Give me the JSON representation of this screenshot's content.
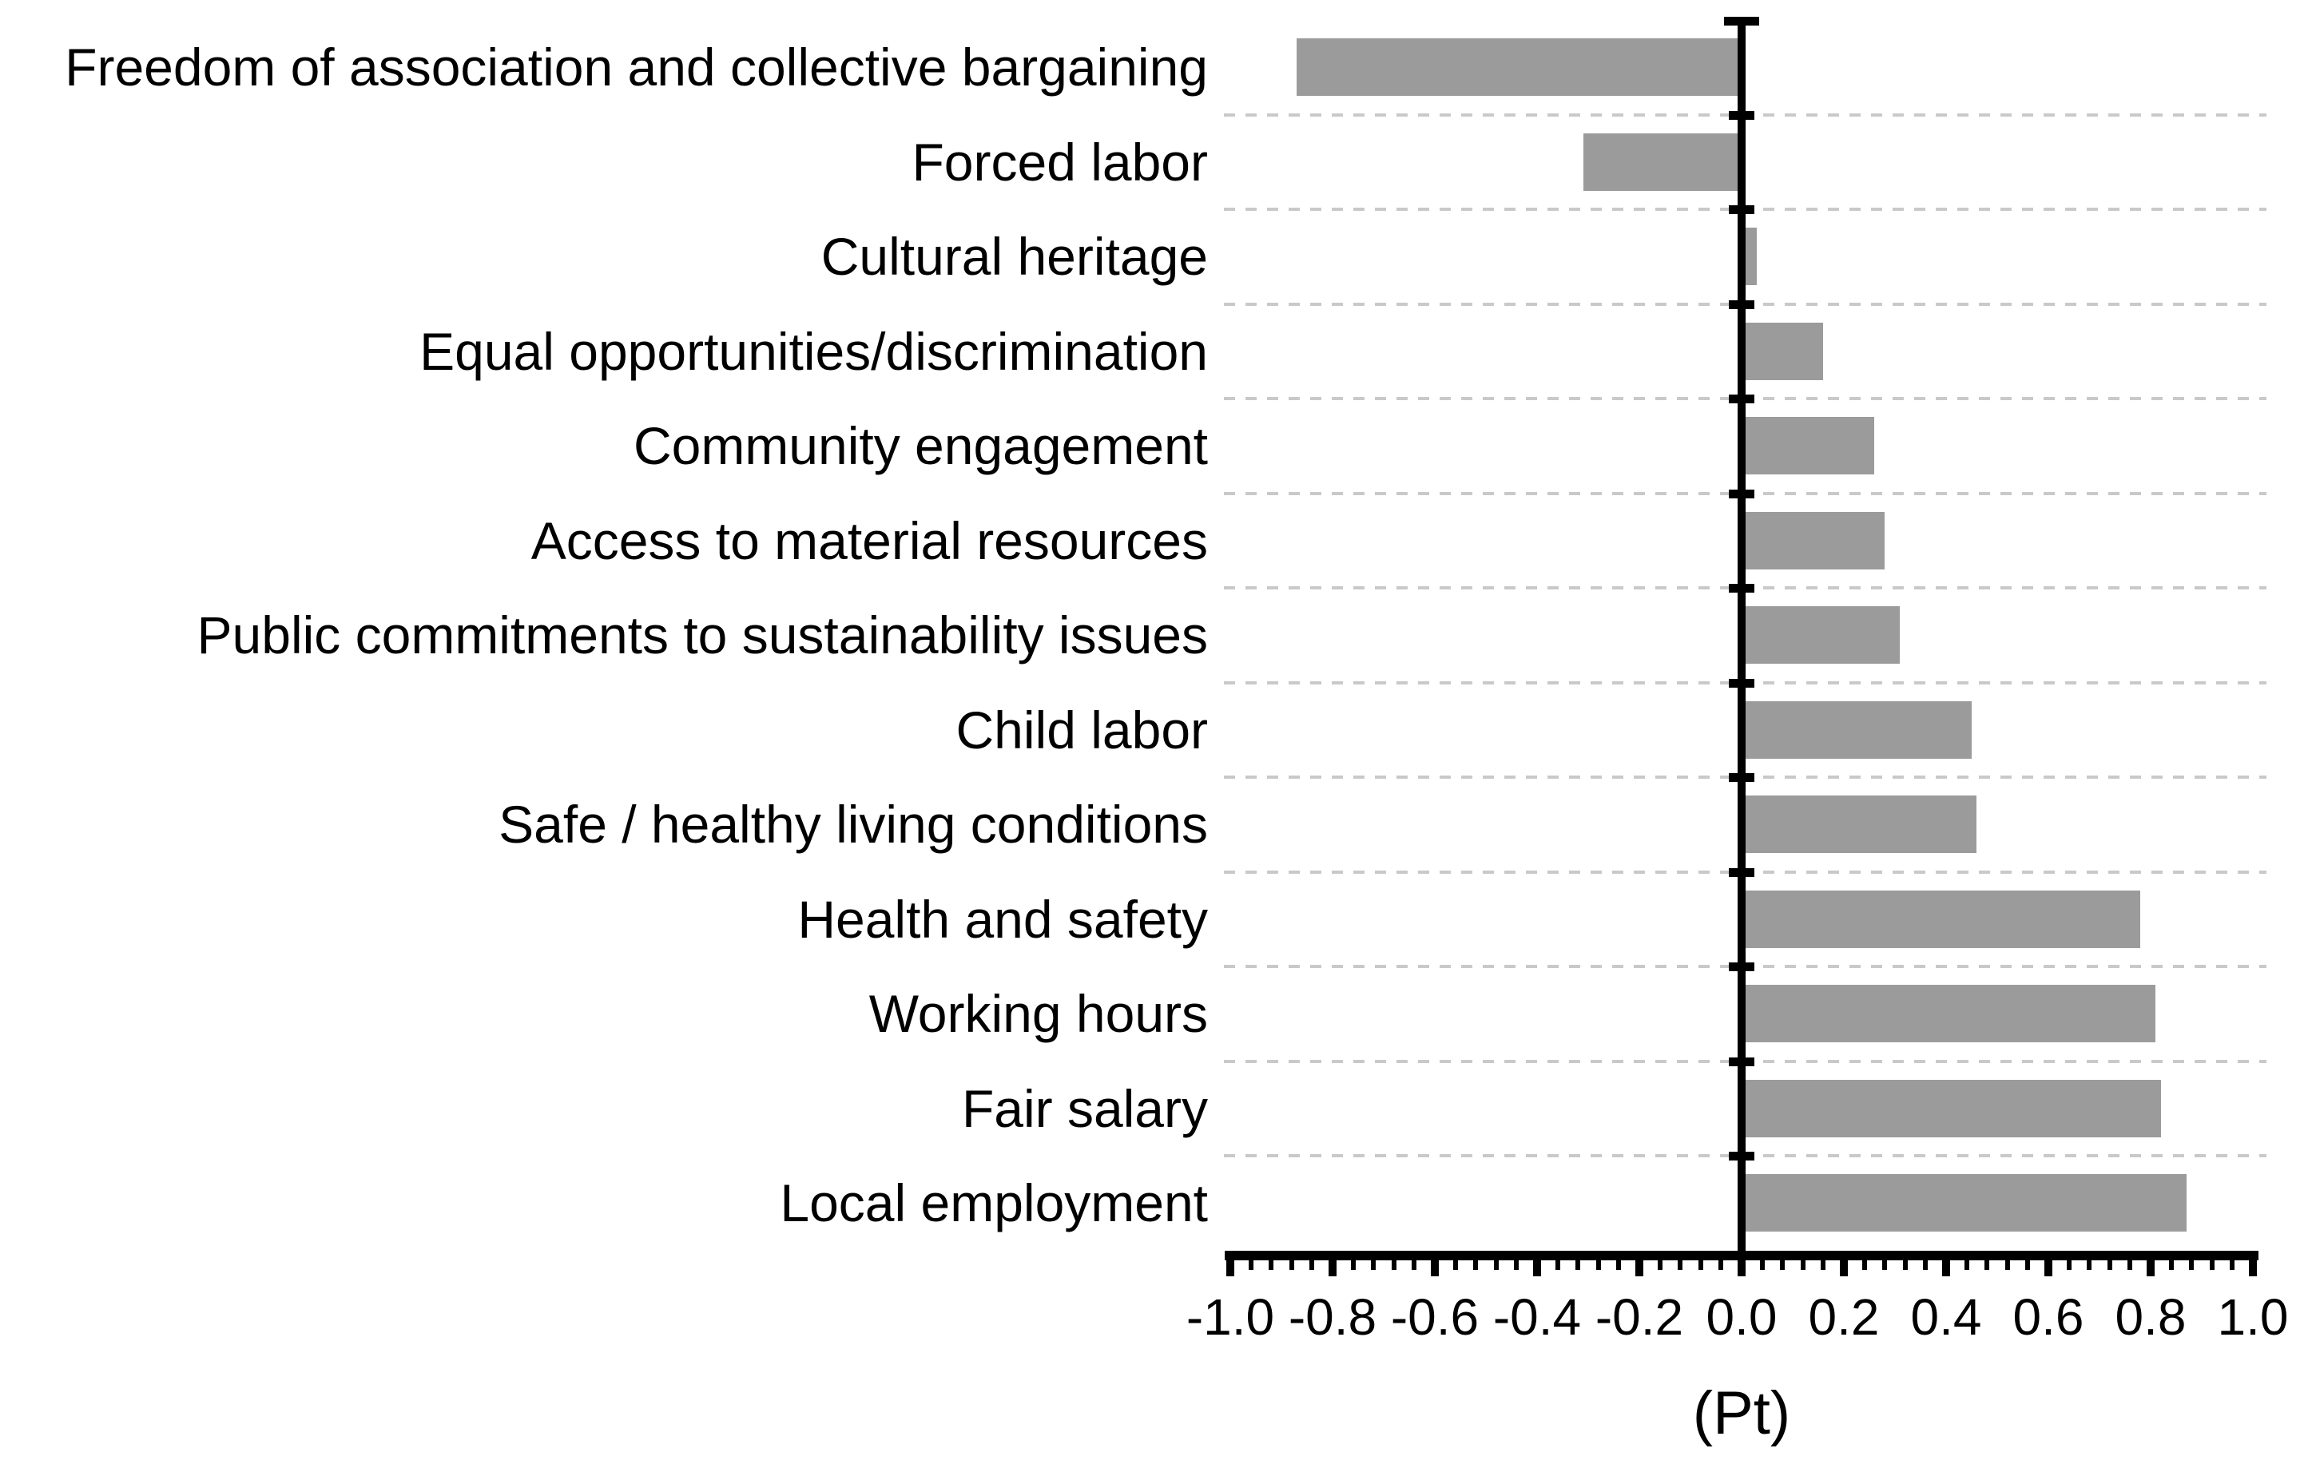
{
  "chart_data": {
    "type": "bar",
    "orientation": "horizontal",
    "title": "",
    "xlabel": "(Pt)",
    "ylabel": "",
    "xlim": [
      -1.0,
      1.0
    ],
    "x_major_tick_step": 0.2,
    "x_minor_tick_step": 0.04,
    "x_tick_labels": [
      "-1.0",
      "-0.8",
      "-0.6",
      "-0.4",
      "-0.2",
      "0.0",
      "0.2",
      "0.4",
      "0.6",
      "0.8",
      "1.0"
    ],
    "grid": "horizontal-dashed-between-rows",
    "legend": "none",
    "categories": [
      "Freedom of association and collective bargaining",
      "Forced labor",
      "Cultural heritage",
      "Equal opportunities/discrimination",
      "Community engagement",
      "Access to material resources",
      "Public commitments to sustainability issues",
      "Child labor",
      "Safe / healthy living conditions",
      "Health and safety",
      "Working hours",
      "Fair salary",
      "Local employment"
    ],
    "values": [
      -0.87,
      -0.31,
      0.03,
      0.16,
      0.26,
      0.28,
      0.31,
      0.45,
      0.46,
      0.78,
      0.81,
      0.82,
      0.87
    ],
    "colors": {
      "bar": "#9b9b9b",
      "axis": "#000000",
      "gridline": "#c9c9c9",
      "text": "#000000",
      "background": "#ffffff"
    }
  }
}
